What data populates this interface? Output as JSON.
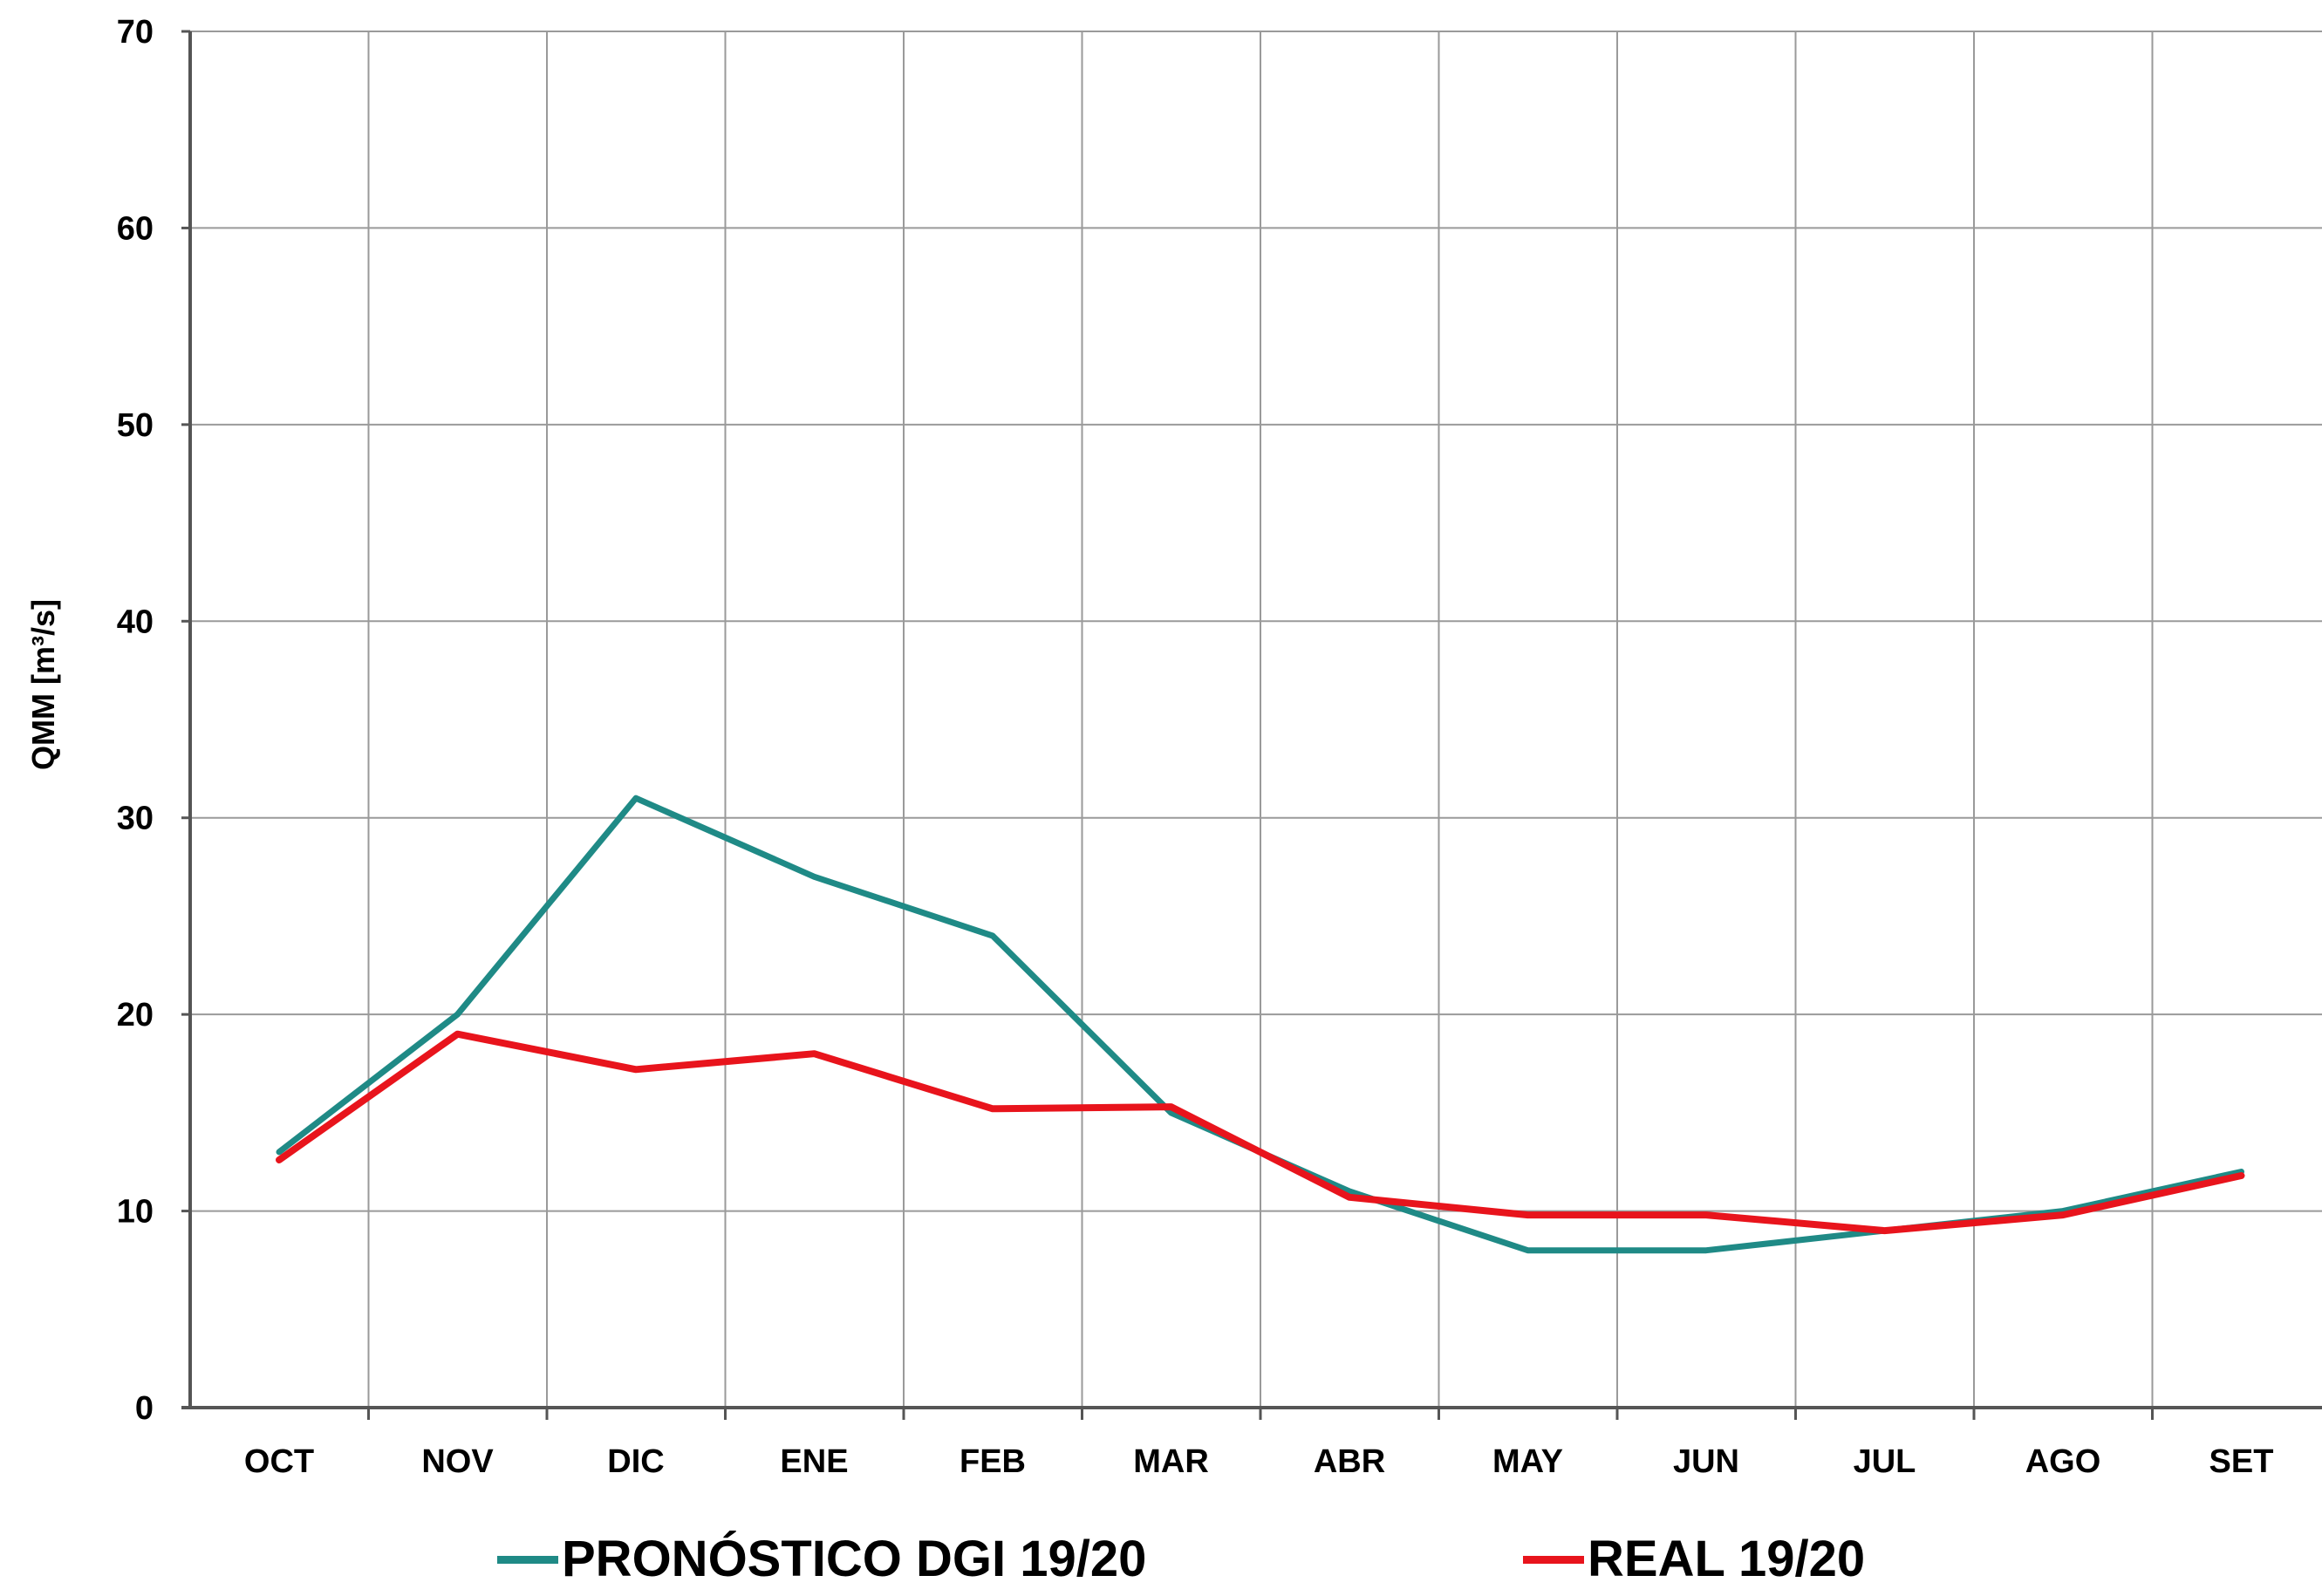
{
  "colors": {
    "forecast": "#1f8a86",
    "real": "#e8141c",
    "grid": "#9a9a9a",
    "axis": "#555555"
  },
  "chart_data": {
    "type": "line",
    "title": "",
    "xlabel": "",
    "ylabel": "QMM [m³/s]",
    "categories": [
      "OCT",
      "NOV",
      "DIC",
      "ENE",
      "FEB",
      "MAR",
      "ABR",
      "MAY",
      "JUN",
      "JUL",
      "AGO",
      "SET"
    ],
    "ylim": [
      0,
      70
    ],
    "yticks": [
      0,
      10,
      20,
      30,
      40,
      50,
      60,
      70
    ],
    "grid": true,
    "legend_position": "bottom",
    "series": [
      {
        "name": "PRONÓSTICO DGI 19/20",
        "color": "#1f8a86",
        "values": [
          13.0,
          20.0,
          31.0,
          27.0,
          24.0,
          15.0,
          11.0,
          8.0,
          8.0,
          9.0,
          10.0,
          12.0
        ]
      },
      {
        "name": "REAL 19/20",
        "color": "#e8141c",
        "values": [
          12.6,
          19.0,
          17.2,
          18.0,
          15.2,
          15.3,
          10.7,
          9.8,
          9.8,
          9.0,
          9.8,
          11.8
        ]
      }
    ]
  }
}
